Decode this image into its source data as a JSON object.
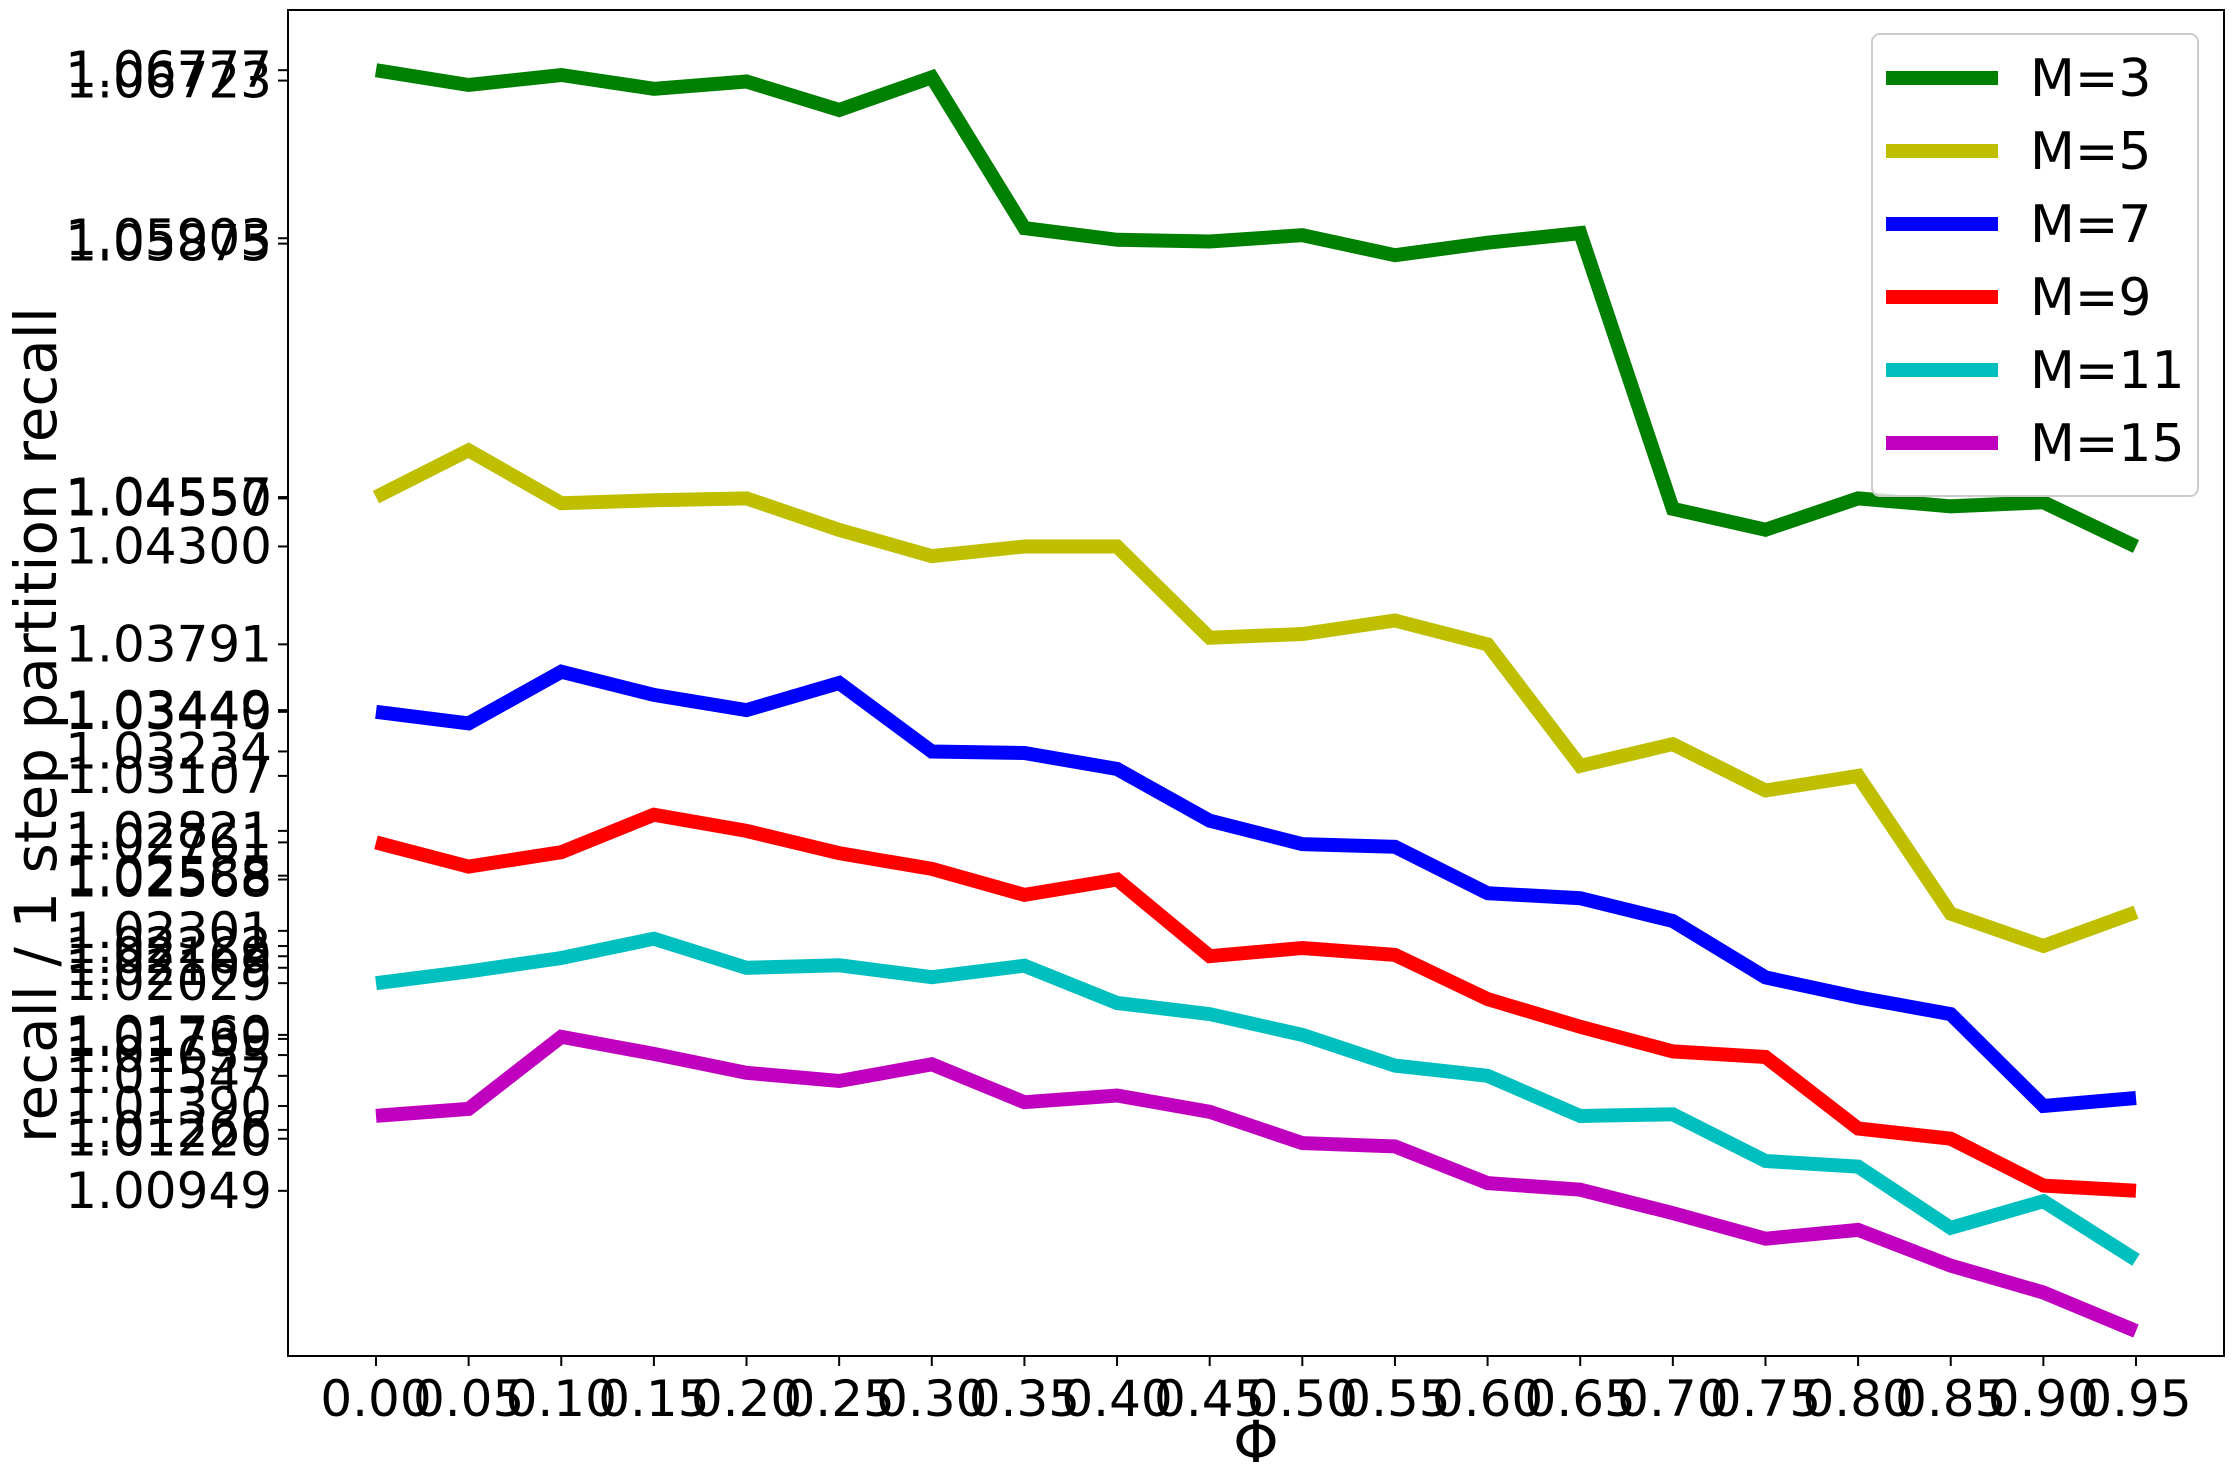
{
  "chart_data": {
    "type": "line",
    "title": "",
    "xlabel": "Φ",
    "ylabel": "recall / 1 step partition recall",
    "x": [
      0.0,
      0.05,
      0.1,
      0.15,
      0.2,
      0.25,
      0.3,
      0.35,
      0.4,
      0.45,
      0.5,
      0.55,
      0.6,
      0.65,
      0.7,
      0.75,
      0.8,
      0.85,
      0.9,
      0.95
    ],
    "x_tick_labels": [
      "0.00",
      "0.05",
      "0.10",
      "0.15",
      "0.20",
      "0.25",
      "0.30",
      "0.35",
      "0.40",
      "0.45",
      "0.50",
      "0.55",
      "0.60",
      "0.65",
      "0.70",
      "0.75",
      "0.80",
      "0.85",
      "0.90",
      "0.95"
    ],
    "y_ticks": [
      1.06777,
      1.06723,
      1.05903,
      1.05875,
      1.04557,
      1.0455,
      1.043,
      1.03791,
      1.03449,
      1.0344,
      1.03234,
      1.03107,
      1.02821,
      1.02761,
      1.02588,
      1.02568,
      1.02301,
      1.02222,
      1.02169,
      1.02109,
      1.02029,
      1.0176,
      1.01739,
      1.01655,
      1.01547,
      1.0139,
      1.01266,
      1.0122,
      1.00949
    ],
    "y_tick_labels": [
      "1.06777",
      "1.06723",
      "1.05903",
      "1.05875",
      "1.04557",
      "1.04550",
      "1.04300",
      "1.03791",
      "1.03449",
      "1.03440",
      "1.03234",
      "1.03107",
      "1.02821",
      "1.02761",
      "1.02588",
      "1.02568",
      "1.02301",
      "1.02222",
      "1.02169",
      "1.02109",
      "1.02029",
      "1.01760",
      "1.01739",
      "1.01655",
      "1.01547",
      "1.01390",
      "1.01266",
      "1.01220",
      "1.00949"
    ],
    "xlim": [
      -0.0475,
      0.9975
    ],
    "ylim": [
      1.0009,
      1.0709
    ],
    "grid": false,
    "legend_position": "top-right",
    "series": [
      {
        "name": "M=3",
        "color": "#008000",
        "values": [
          1.06777,
          1.067,
          1.06752,
          1.0668,
          1.06718,
          1.0657,
          1.0674,
          1.05956,
          1.05895,
          1.05886,
          1.05919,
          1.05815,
          1.0588,
          1.0593,
          1.04496,
          1.04387,
          1.0455,
          1.04509,
          1.0453,
          1.043
        ]
      },
      {
        "name": "M=5",
        "color": "#bfbf00",
        "values": [
          1.04557,
          1.048,
          1.04525,
          1.0454,
          1.0455,
          1.04386,
          1.0425,
          1.043,
          1.043,
          1.03825,
          1.03845,
          1.03915,
          1.03791,
          1.03159,
          1.03272,
          1.03031,
          1.03107,
          1.02391,
          1.02222,
          1.02398
        ]
      },
      {
        "name": "M=7",
        "color": "#0000ff",
        "values": [
          1.0344,
          1.0338,
          1.03649,
          1.03528,
          1.03449,
          1.0359,
          1.03234,
          1.03226,
          1.03143,
          1.02874,
          1.02752,
          1.02738,
          1.02497,
          1.02471,
          1.02352,
          1.02059,
          1.01955,
          1.01868,
          1.0139,
          1.01432
        ]
      },
      {
        "name": "M=9",
        "color": "#ff0000",
        "values": [
          1.02761,
          1.02635,
          1.0271,
          1.02905,
          1.02821,
          1.02705,
          1.02623,
          1.02488,
          1.02568,
          1.02169,
          1.02212,
          1.02176,
          1.01946,
          1.01802,
          1.01674,
          1.01645,
          1.01273,
          1.0122,
          1.00976,
          1.00949
        ]
      },
      {
        "name": "M=11",
        "color": "#00bfbf",
        "values": [
          1.02029,
          1.0209,
          1.0216,
          1.0226,
          1.02109,
          1.02122,
          1.0206,
          1.0212,
          1.01926,
          1.01868,
          1.0176,
          1.016,
          1.01547,
          1.01338,
          1.01347,
          1.01104,
          1.01075,
          1.00756,
          1.00895,
          1.0059
        ]
      },
      {
        "name": "M=15",
        "color": "#bf00bf",
        "values": [
          1.01339,
          1.01375,
          1.0175,
          1.01661,
          1.01563,
          1.0152,
          1.01607,
          1.0141,
          1.01445,
          1.0136,
          1.01197,
          1.0118,
          1.00989,
          1.00955,
          1.00833,
          1.007,
          1.00746,
          1.0056,
          1.0042,
          1.0022
        ]
      }
    ]
  }
}
